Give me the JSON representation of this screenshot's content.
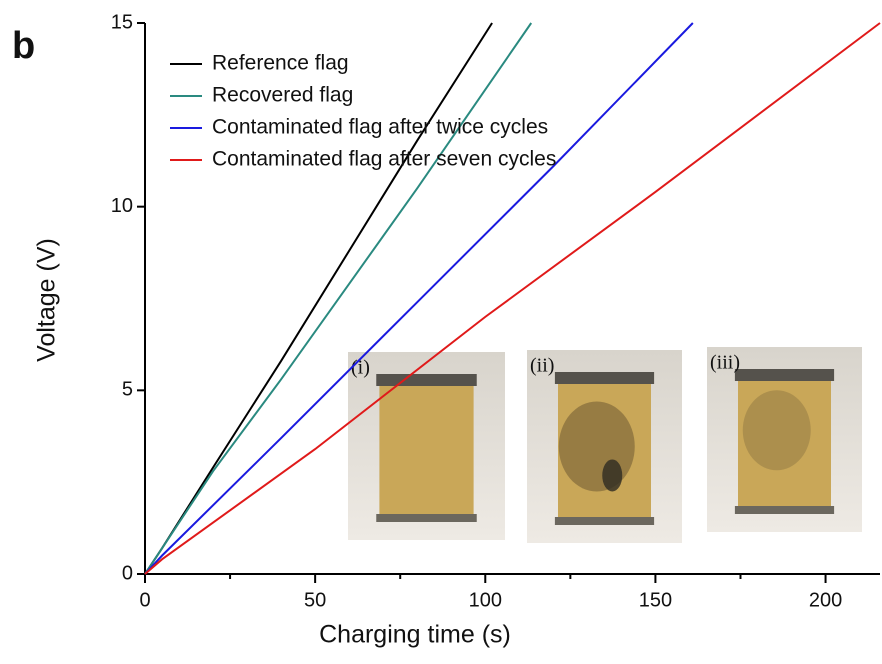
{
  "chart_data": {
    "type": "line",
    "panel_label": "b",
    "xlabel": "Charging time (s)",
    "ylabel": "Voltage (V)",
    "xlim": [
      0,
      216
    ],
    "ylim": [
      0,
      15
    ],
    "xticks": [
      0,
      50,
      100,
      150,
      200
    ],
    "xminorticks": [
      25,
      75,
      125,
      175
    ],
    "yticks": [
      0,
      5,
      10,
      15
    ],
    "series": [
      {
        "name": "Reference flag",
        "color": "#000000",
        "x": [
          0,
          5,
          20,
          40,
          60,
          80,
          102
        ],
        "values": [
          0,
          0.7,
          2.9,
          5.8,
          8.8,
          11.8,
          15
        ]
      },
      {
        "name": "Recovered flag",
        "color": "#2a8a80",
        "x": [
          0,
          5,
          20,
          40,
          60,
          80,
          113.5
        ],
        "values": [
          0,
          0.7,
          2.8,
          5.3,
          7.9,
          10.5,
          15
        ]
      },
      {
        "name": "Contaminated flag after twice cycles",
        "color": "#1a1adf",
        "x": [
          0,
          5,
          40,
          80,
          120,
          161
        ],
        "values": [
          0,
          0.5,
          3.7,
          7.4,
          11.1,
          15
        ]
      },
      {
        "name": "Contaminated flag after seven cycles",
        "color": "#e01a1a",
        "x": [
          0,
          5,
          50,
          100,
          150,
          216
        ],
        "values": [
          0,
          0.4,
          3.4,
          7.0,
          10.4,
          15
        ]
      }
    ],
    "insets": [
      "(i)",
      "(ii)",
      "(iii)"
    ]
  }
}
